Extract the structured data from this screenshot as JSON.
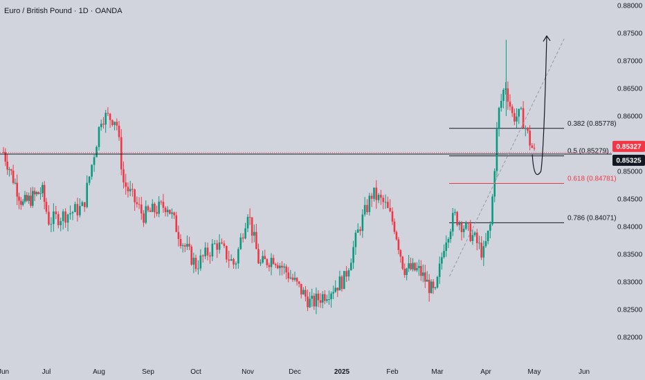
{
  "chart_data": {
    "type": "candlestick",
    "title": "Euro / British Pound · 1D · OANDA",
    "x_ticks": [
      {
        "label": "Jun",
        "x": 0
      },
      {
        "label": "Jul",
        "x": 1
      },
      {
        "label": "Aug",
        "x": 2
      },
      {
        "label": "Sep",
        "x": 3
      },
      {
        "label": "Oct",
        "x": 4
      },
      {
        "label": "Nov",
        "x": 5
      },
      {
        "label": "Dec",
        "x": 6
      },
      {
        "label": "2025",
        "x": 7,
        "bold": true
      },
      {
        "label": "Feb",
        "x": 8
      },
      {
        "label": "Mar",
        "x": 9
      },
      {
        "label": "Apr",
        "x": 10
      },
      {
        "label": "May",
        "x": 11
      },
      {
        "label": "Jun",
        "x": 12
      }
    ],
    "y_ticks": [
      "0.88000",
      "0.87500",
      "0.87000",
      "0.86500",
      "0.86000",
      "0.85500",
      "0.85000",
      "0.84500",
      "0.84000",
      "0.83500",
      "0.83000",
      "0.82500",
      "0.82000"
    ],
    "ylim": [
      0.8175,
      0.8805
    ],
    "price_lines": [
      {
        "label": "0.85327",
        "value": 0.85327,
        "color": "#f23645",
        "style": "dotted"
      },
      {
        "label": "0.85325",
        "value": 0.85325,
        "color": "#131722",
        "style": "solid"
      }
    ],
    "fib_levels": [
      {
        "label": "0.382 (0.85778)",
        "value": 0.85778,
        "color": "#131722"
      },
      {
        "label": "0.5 (0.85279)",
        "value": 0.85279,
        "color": "#131722"
      },
      {
        "label": "0.618 (0.84781)",
        "value": 0.84781,
        "color": "#f23645"
      },
      {
        "label": "0.786 (0.84071)",
        "value": 0.84071,
        "color": "#131722"
      }
    ],
    "colors": {
      "up": "#089981",
      "down": "#f23645",
      "background": "#d1d4dc",
      "text": "#131722"
    },
    "path_points": [
      [
        0.0,
        0.8535
      ],
      [
        0.45,
        0.844
      ],
      [
        0.9,
        0.8465
      ],
      [
        1.05,
        0.841
      ],
      [
        1.7,
        0.8435
      ],
      [
        2.05,
        0.86
      ],
      [
        2.35,
        0.8595
      ],
      [
        2.5,
        0.848
      ],
      [
        2.9,
        0.842
      ],
      [
        3.4,
        0.844
      ],
      [
        3.7,
        0.8375
      ],
      [
        4.0,
        0.833
      ],
      [
        4.4,
        0.837
      ],
      [
        4.75,
        0.833
      ],
      [
        5.0,
        0.843
      ],
      [
        5.25,
        0.833
      ],
      [
        5.55,
        0.8345
      ],
      [
        5.9,
        0.831
      ],
      [
        6.35,
        0.826
      ],
      [
        6.75,
        0.8285
      ],
      [
        7.05,
        0.8305
      ],
      [
        7.35,
        0.84
      ],
      [
        7.6,
        0.846
      ],
      [
        7.85,
        0.844
      ],
      [
        8.05,
        0.84
      ],
      [
        8.25,
        0.8325
      ],
      [
        8.6,
        0.832
      ],
      [
        8.95,
        0.8275
      ],
      [
        9.15,
        0.8375
      ],
      [
        9.35,
        0.842
      ],
      [
        9.75,
        0.838
      ],
      [
        9.95,
        0.835
      ],
      [
        10.1,
        0.8405
      ],
      [
        10.25,
        0.86
      ],
      [
        10.4,
        0.866
      ],
      [
        10.55,
        0.86
      ],
      [
        10.75,
        0.86
      ],
      [
        10.9,
        0.8555
      ],
      [
        11.0,
        0.8533
      ]
    ]
  }
}
